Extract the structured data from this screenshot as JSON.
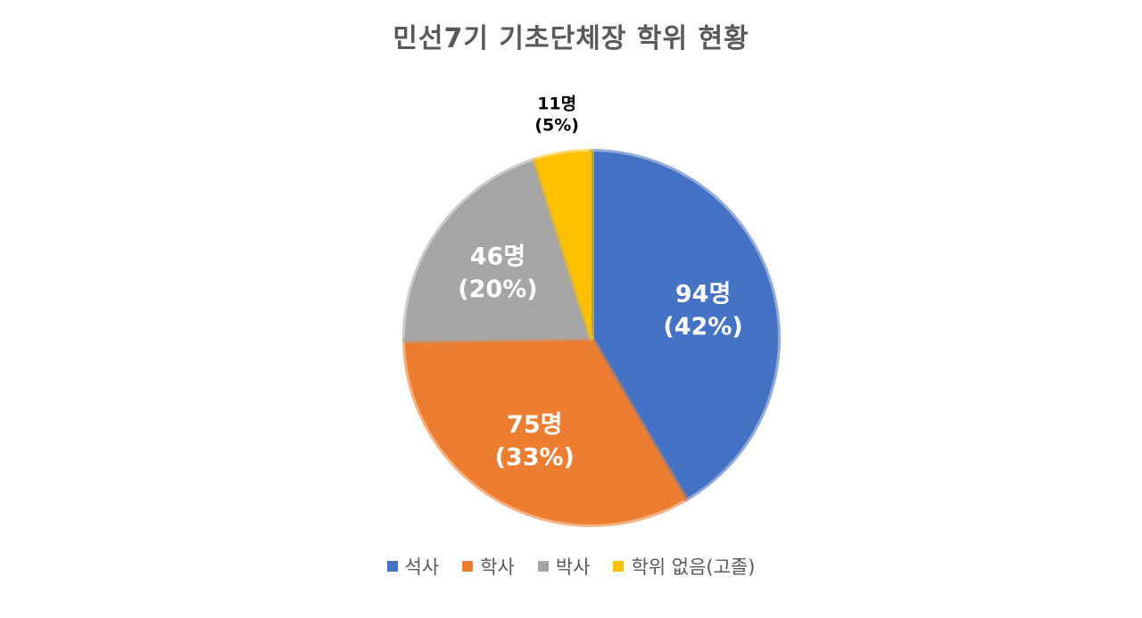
{
  "title": "민선7기 기초단체장 학위 현황",
  "chart_data": {
    "type": "pie",
    "categories": [
      "석사",
      "학사",
      "박사",
      "학위 없음(고졸)"
    ],
    "values": [
      94,
      75,
      46,
      11
    ],
    "value_labels": [
      "94명",
      "75명",
      "46명",
      "11명"
    ],
    "percent_labels": [
      "(42%)",
      "(33%)",
      "(20%)",
      "(5%)"
    ],
    "colors": [
      "#4472C4",
      "#ED7D31",
      "#A5A5A5",
      "#FFC000"
    ],
    "legend_position": "bottom",
    "start_angle": "12 o'clock",
    "direction": "clockwise"
  }
}
